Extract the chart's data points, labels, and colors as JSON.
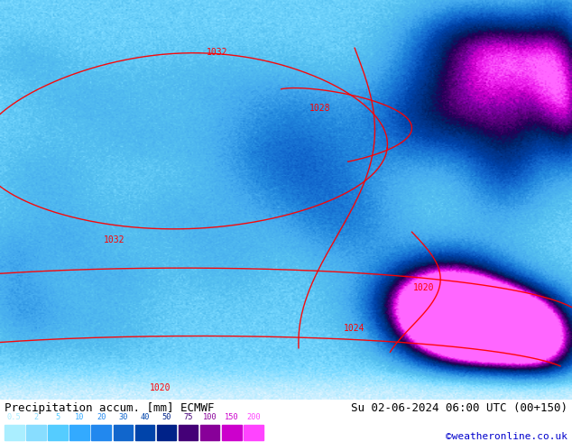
{
  "title_left": "Precipitation accum. [mm] ECMWF",
  "title_right": "Su 02-06-2024 06:00 UTC (00+150)",
  "credit": "©weatheronline.co.uk",
  "legend_values": [
    "0.5",
    "2",
    "5",
    "10",
    "20",
    "30",
    "40",
    "50",
    "75",
    "100",
    "150",
    "200"
  ],
  "legend_colors": [
    "#aaeeff",
    "#88ddff",
    "#55ccff",
    "#33aaff",
    "#2288ee",
    "#1166cc",
    "#0044aa",
    "#002288",
    "#440077",
    "#880099",
    "#cc00cc",
    "#ff44ff"
  ],
  "bg_color": "#ffffff",
  "title_color": "#000000",
  "title_fontsize": 9.0,
  "credit_color": "#0000cc",
  "credit_fontsize": 8.0
}
